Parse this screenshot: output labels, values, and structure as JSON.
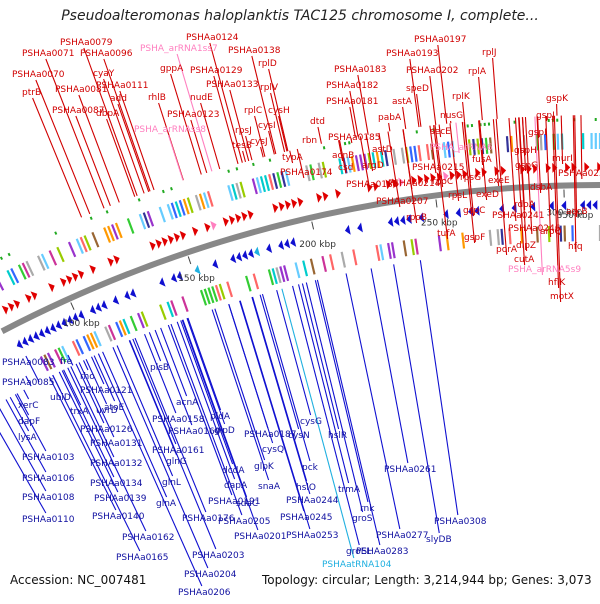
{
  "title": "Pseudoalteromonas haloplanktis TAC125 chromosome I, complete...",
  "footer": {
    "accession": "Accession: NC_007481",
    "summary": "Topology: circular; Length: 3,214,944 bp; Genes: 3,073"
  },
  "ticks": [
    "100 kbp",
    "150 kbp",
    "200 kbp",
    "250 kbp",
    "300 kbp",
    "350 kbp"
  ],
  "colors": {
    "forward": "#e00000",
    "reverse": "#1010d0",
    "rna": "#ff80c0",
    "rna_reverse": "#20b0e0",
    "backbone": "#888888"
  },
  "top_labels": [
    "ptrB",
    "PSHAa0070",
    "PSHAa0071",
    "PSHAa0079",
    "PSHAa0081",
    "PSHAa0087",
    "PSHAa0096",
    "cyaY",
    "add",
    "dbpA",
    "PSHAa0111",
    "rhlB",
    "gppA",
    "PSHA_arRNA1ss7",
    "PSHAa0124",
    "PSHA_arRNAss8",
    "PSHAa0123",
    "nudE",
    "PSHAa0129",
    "PSHAa0133",
    "PSHAa0138",
    "rplD",
    "rplV",
    "cysH",
    "rplC",
    "cysI",
    "rpsJ",
    "cysJ",
    "tesB",
    "dtd",
    "rbn",
    "typA",
    "PSHAa0174",
    "acnB",
    "csd",
    "argD",
    "PSHAa0185",
    "PSHAa0181",
    "PSHAa0182",
    "PSHAa0183",
    "astA",
    "pabA",
    "PSHAa0188",
    "astD",
    "PSHAa0193",
    "PSHAa0197",
    "speD",
    "PSHAa0202",
    "rplJ",
    "rplA",
    "rplK",
    "nusG",
    "secE",
    "PSHA_arRNA6",
    "PSHAa0215",
    "PSHAa0214",
    "PSHAa0207",
    "rpoC",
    "rpsG",
    "fusA",
    "rpoB",
    "rpsL",
    "tufA",
    "exeD",
    "exeE",
    "gspC",
    "gspF",
    "gspG",
    "gspH",
    "gspI",
    "gspJ",
    "gspK",
    "murI",
    "dsbA",
    "PSHAa0251",
    "rdoA",
    "PSHAa0241",
    "PSHAa0246",
    "porA",
    "cutA",
    "dipZ",
    "aroQ",
    "accB",
    "hfq",
    "PSHA_arRNA5s9",
    "hflK",
    "motX"
  ],
  "bottom_labels": [
    "PSHAa0083",
    "PSHAa0085",
    "xerC",
    "dapF",
    "lysA",
    "PSHAa0103",
    "PSHAa0106",
    "PSHAa0108",
    "PSHAa0110",
    "fre",
    "rho",
    "ubiD",
    "trxA",
    "uvrD",
    "PSHAa0121",
    "atoE",
    "PSHAa0126",
    "PSHAa0131",
    "PSHAa0132",
    "PSHAa0134",
    "PSHAa0139",
    "PSHAa0140",
    "plsB",
    "acnA",
    "PSHAa0158",
    "PSHAa0160",
    "PSHAa0161",
    "glnG",
    "glnL",
    "glnA",
    "PSHAa0162",
    "PSHAa0165",
    "PSHAa0176",
    "pldA",
    "glpD",
    "dcdA",
    "dapA",
    "PSHAa0187",
    "cysQ",
    "cysN",
    "cysG",
    "glpK",
    "snaA",
    "sdaC",
    "PSHAa0191",
    "PSHAa0205",
    "PSHAa0201",
    "PSHAa0203",
    "PSHAa0204",
    "PSHAa0206",
    "hslR",
    "hslO",
    "pck",
    "trmA",
    "PSHAa0244",
    "PSHAa0245",
    "rnk",
    "groS",
    "PSHAa0253",
    "groEL",
    "PSHAa0261",
    "PSHAa0277",
    "PSHAa0283",
    "slyDB",
    "PSHAa0308",
    "PSHAatRNA104"
  ]
}
